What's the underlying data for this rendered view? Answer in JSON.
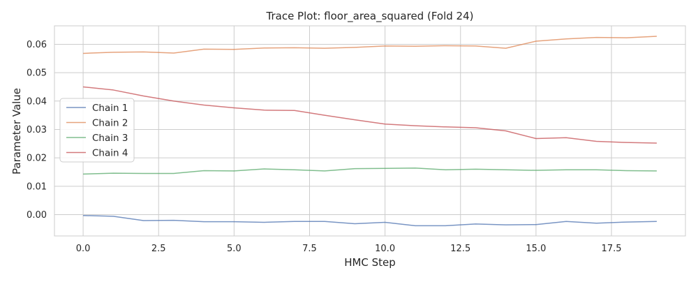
{
  "chart_data": {
    "type": "line",
    "title": "Trace Plot: floor_area_squared (Fold 24)",
    "xlabel": "HMC Step",
    "ylabel": "Parameter Value",
    "xlim": [
      -0.95,
      19.95
    ],
    "ylim": [
      -0.0075,
      0.0665
    ],
    "x_ticks": [
      0.0,
      2.5,
      5.0,
      7.5,
      10.0,
      12.5,
      15.0,
      17.5
    ],
    "x_tick_labels": [
      "0.0",
      "2.5",
      "5.0",
      "7.5",
      "10.0",
      "12.5",
      "15.0",
      "17.5"
    ],
    "y_ticks": [
      0.0,
      0.01,
      0.02,
      0.03,
      0.04,
      0.05,
      0.06
    ],
    "y_tick_labels": [
      "0.00",
      "0.01",
      "0.02",
      "0.03",
      "0.04",
      "0.05",
      "0.06"
    ],
    "grid": true,
    "legend_position": "center-left",
    "x": [
      0,
      1,
      2,
      3,
      4,
      5,
      6,
      7,
      8,
      9,
      10,
      11,
      12,
      13,
      14,
      15,
      16,
      17,
      18,
      19
    ],
    "series": [
      {
        "name": "Chain 1",
        "color": "#4c72b0",
        "values": [
          -0.0003,
          -0.0006,
          -0.0021,
          -0.002,
          -0.0025,
          -0.0025,
          -0.0027,
          -0.0024,
          -0.0024,
          -0.0032,
          -0.0027,
          -0.0039,
          -0.0039,
          -0.0033,
          -0.0036,
          -0.0035,
          -0.0024,
          -0.003,
          -0.0026,
          -0.0024
        ]
      },
      {
        "name": "Chain 2",
        "color": "#dd8452",
        "values": [
          0.0568,
          0.0572,
          0.0573,
          0.0569,
          0.0583,
          0.0582,
          0.0587,
          0.0588,
          0.0586,
          0.0589,
          0.0594,
          0.0593,
          0.0595,
          0.0594,
          0.0586,
          0.0611,
          0.0619,
          0.0624,
          0.0623,
          0.0628
        ]
      },
      {
        "name": "Chain 3",
        "color": "#55a868",
        "values": [
          0.0143,
          0.0146,
          0.0145,
          0.0145,
          0.0155,
          0.0154,
          0.0161,
          0.0158,
          0.0154,
          0.0162,
          0.0163,
          0.0164,
          0.0158,
          0.016,
          0.0158,
          0.0156,
          0.0158,
          0.0158,
          0.0155,
          0.0154
        ]
      },
      {
        "name": "Chain 4",
        "color": "#c44e52",
        "values": [
          0.045,
          0.0439,
          0.0418,
          0.04,
          0.0386,
          0.0376,
          0.0368,
          0.0367,
          0.035,
          0.0334,
          0.0319,
          0.0313,
          0.0309,
          0.0306,
          0.0295,
          0.0268,
          0.0271,
          0.0258,
          0.0254,
          0.0252
        ]
      }
    ]
  }
}
